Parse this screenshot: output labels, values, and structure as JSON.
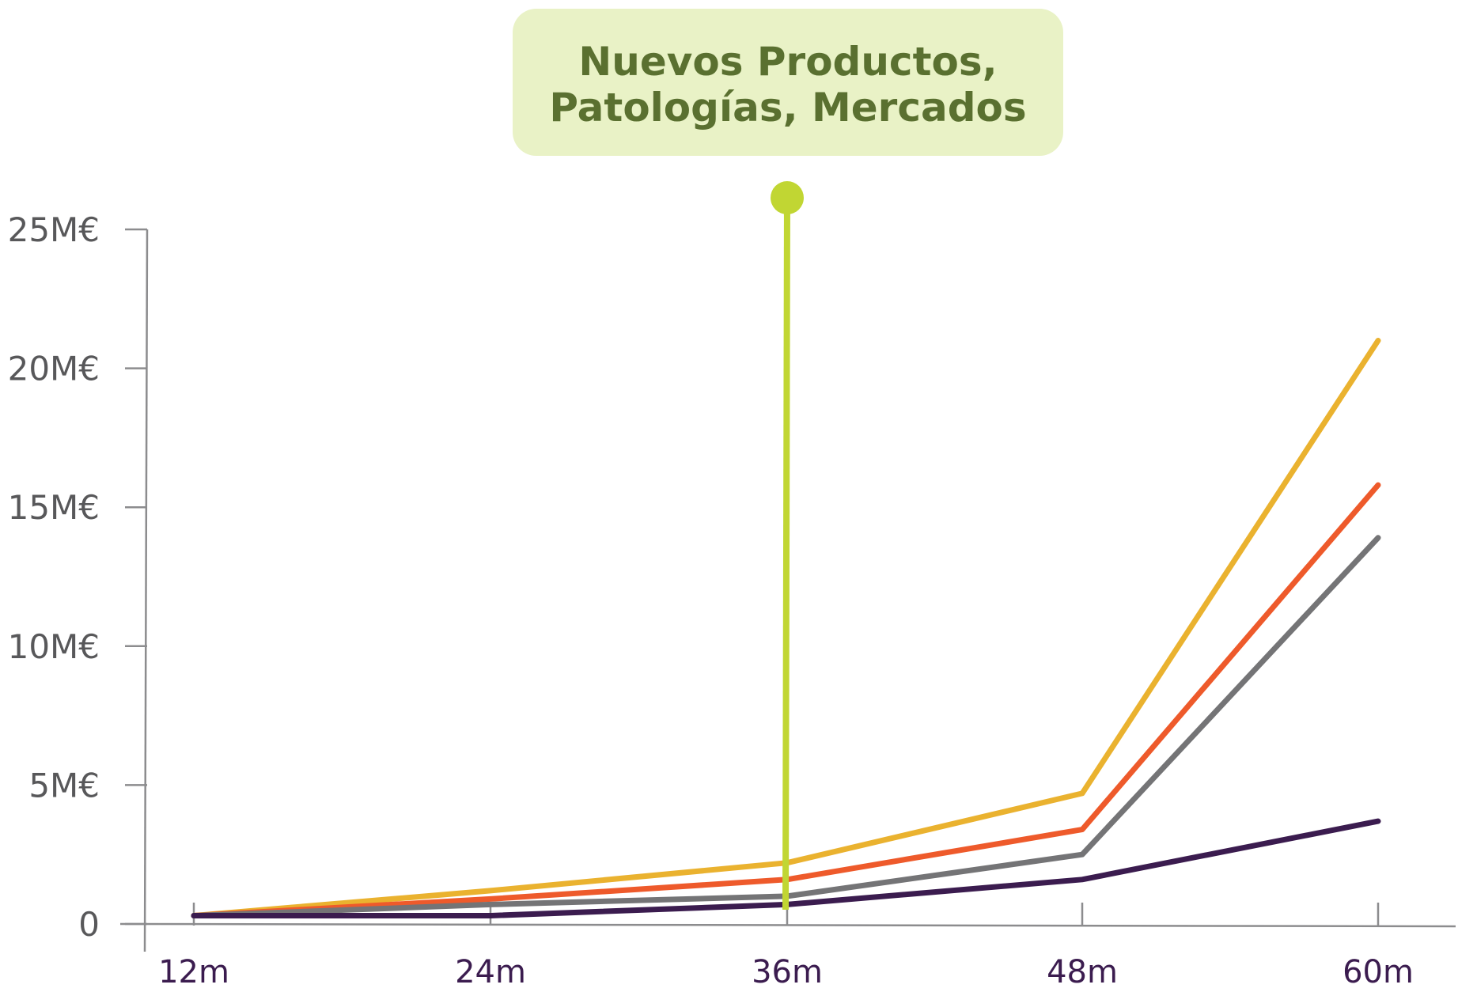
{
  "chart_data": {
    "type": "line",
    "x": [
      "12m",
      "24m",
      "36m",
      "48m",
      "60m"
    ],
    "yticks": [
      "0",
      "5M€",
      "10M€",
      "15M€",
      "20M€",
      "25M€"
    ],
    "ylim": [
      0,
      25
    ],
    "grid": false,
    "series": [
      {
        "color": "#eab22f",
        "values": [
          0.3,
          1.2,
          2.2,
          4.7,
          21.0
        ]
      },
      {
        "color": "#ee5a2b",
        "values": [
          0.3,
          0.9,
          1.6,
          3.4,
          15.8
        ]
      },
      {
        "color": "#747476",
        "values": [
          0.3,
          0.7,
          1.0,
          2.5,
          13.9
        ]
      },
      {
        "color": "#3b1c4f",
        "values": [
          0.3,
          0.3,
          0.7,
          1.6,
          3.7
        ]
      }
    ],
    "annotation": {
      "lines": [
        "Nuevos Productos,",
        "Patologías, Mercados"
      ],
      "at": "36m",
      "marker_color": "#c1d633",
      "box_color": "#e9f2c6"
    },
    "axis_color": "#8c8c8e"
  }
}
